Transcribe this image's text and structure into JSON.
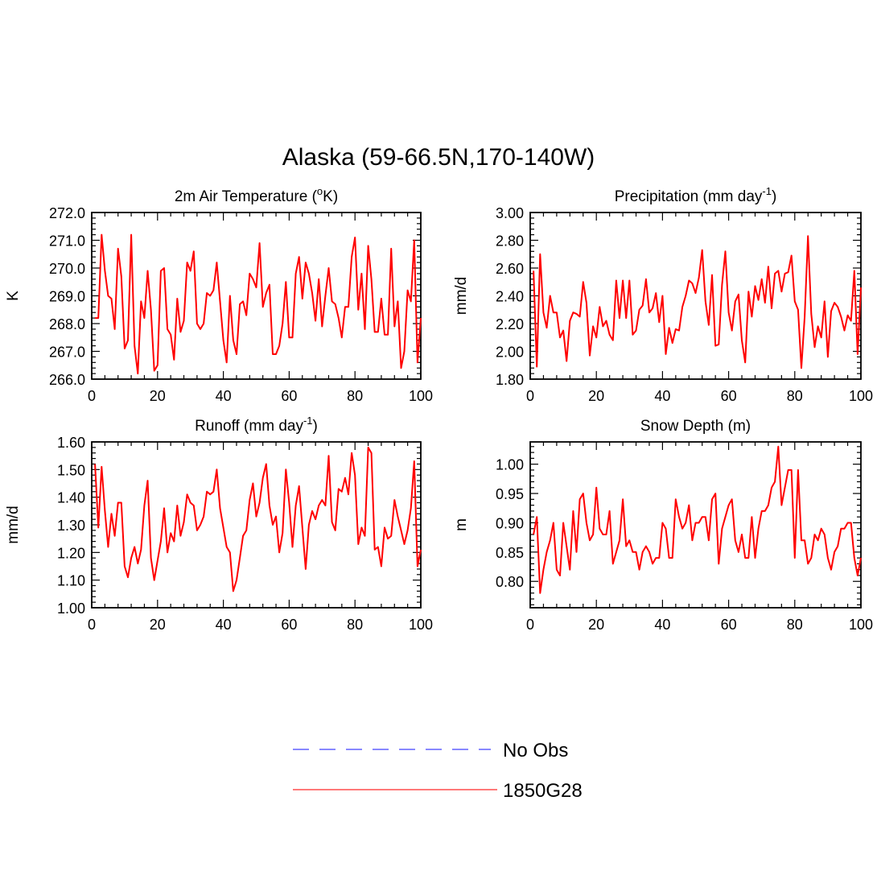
{
  "figure": {
    "title": "Alaska (59-66.5N,170-140W)"
  },
  "legend": {
    "entries": [
      {
        "label": "No Obs",
        "color": "#7777ff",
        "style": "dashed"
      },
      {
        "label": "1850G28",
        "color": "#ff0000",
        "style": "solid"
      }
    ]
  },
  "chart_data": [
    {
      "type": "line",
      "title": "2m Air Temperature (",
      "title_sup": "o",
      "title_end": "K)",
      "ylabel": "K",
      "xlim": [
        0,
        100
      ],
      "ylim": [
        266.0,
        272.0
      ],
      "xticks": [
        0,
        20,
        40,
        60,
        80,
        100
      ],
      "xtick_labels": [
        "0",
        "20",
        "40",
        "60",
        "80",
        "100"
      ],
      "yticks": [
        266.0,
        267.0,
        268.0,
        269.0,
        270.0,
        271.0,
        272.0
      ],
      "ytick_labels": [
        "266.0",
        "267.0",
        "268.0",
        "269.0",
        "270.0",
        "271.0",
        "272.0"
      ],
      "yminor": 0.2,
      "series": [
        {
          "name": "1850G28",
          "color": "#ff0000",
          "x": [
            1,
            2,
            3,
            4,
            5,
            6,
            7,
            8,
            9,
            10,
            11,
            12,
            13,
            14,
            15,
            16,
            17,
            18,
            19,
            20,
            21,
            22,
            23,
            24,
            25,
            26,
            27,
            28,
            29,
            30,
            31,
            32,
            33,
            34,
            35,
            36,
            37,
            38,
            39,
            40,
            41,
            42,
            43,
            44,
            45,
            46,
            47,
            48,
            49,
            50,
            51,
            52,
            53,
            54,
            55,
            56,
            57,
            58,
            59,
            60,
            61,
            62,
            63,
            64,
            65,
            66,
            67,
            68,
            69,
            70,
            71,
            72,
            73,
            74,
            75,
            76,
            77,
            78,
            79,
            80,
            81,
            82,
            83,
            84,
            85,
            86,
            87,
            88,
            89,
            90,
            91,
            92,
            93,
            94,
            95,
            96,
            97,
            98,
            99,
            100
          ],
          "values": [
            268.2,
            268.2,
            271.2,
            269.9,
            269.0,
            268.9,
            267.8,
            270.7,
            269.7,
            267.1,
            267.4,
            271.2,
            267.2,
            266.2,
            268.8,
            268.2,
            269.9,
            268.5,
            266.3,
            266.5,
            269.9,
            270.0,
            267.8,
            267.6,
            266.7,
            268.9,
            267.7,
            268.1,
            270.2,
            269.9,
            270.6,
            268.0,
            267.8,
            268.0,
            269.1,
            269.0,
            269.2,
            270.2,
            268.8,
            267.4,
            266.6,
            269.0,
            267.4,
            266.9,
            268.7,
            268.8,
            268.3,
            269.8,
            269.6,
            269.3,
            270.9,
            268.6,
            269.1,
            269.4,
            266.9,
            266.9,
            267.2,
            268.0,
            269.5,
            267.5,
            267.5,
            269.8,
            270.4,
            268.9,
            270.2,
            269.8,
            269.1,
            268.1,
            269.6,
            267.9,
            269.0,
            270.0,
            268.8,
            268.7,
            268.2,
            267.5,
            268.6,
            268.6,
            270.4,
            271.1,
            268.5,
            269.8,
            267.8,
            270.8,
            269.6,
            267.7,
            267.7,
            268.9,
            267.6,
            267.6,
            270.7,
            267.9,
            268.8,
            266.4,
            267.0,
            269.2,
            268.8,
            271.0,
            266.6,
            268.2
          ]
        }
      ]
    },
    {
      "type": "line",
      "title": "Precipitation (mm day",
      "title_sup": "-1",
      "title_end": ")",
      "ylabel": "mm/d",
      "xlim": [
        0,
        100
      ],
      "ylim": [
        1.8,
        3.0
      ],
      "xticks": [
        0,
        20,
        40,
        60,
        80,
        100
      ],
      "xtick_labels": [
        "0",
        "20",
        "40",
        "60",
        "80",
        "100"
      ],
      "yticks": [
        1.8,
        2.0,
        2.2,
        2.4,
        2.6,
        2.8,
        3.0
      ],
      "ytick_labels": [
        "1.80",
        "2.00",
        "2.20",
        "2.40",
        "2.60",
        "2.80",
        "3.00"
      ],
      "yminor": 0.04,
      "series": [
        {
          "name": "1850G28",
          "color": "#ff0000",
          "x": [
            1,
            2,
            3,
            4,
            5,
            6,
            7,
            8,
            9,
            10,
            11,
            12,
            13,
            14,
            15,
            16,
            17,
            18,
            19,
            20,
            21,
            22,
            23,
            24,
            25,
            26,
            27,
            28,
            29,
            30,
            31,
            32,
            33,
            34,
            35,
            36,
            37,
            38,
            39,
            40,
            41,
            42,
            43,
            44,
            45,
            46,
            47,
            48,
            49,
            50,
            51,
            52,
            53,
            54,
            55,
            56,
            57,
            58,
            59,
            60,
            61,
            62,
            63,
            64,
            65,
            66,
            67,
            68,
            69,
            70,
            71,
            72,
            73,
            74,
            75,
            76,
            77,
            78,
            79,
            80,
            81,
            82,
            83,
            84,
            85,
            86,
            87,
            88,
            89,
            90,
            91,
            92,
            93,
            94,
            95,
            96,
            97,
            98,
            99,
            100
          ],
          "values": [
            2.58,
            1.89,
            2.7,
            2.28,
            2.17,
            2.4,
            2.28,
            2.28,
            2.1,
            2.15,
            1.93,
            2.22,
            2.28,
            2.27,
            2.25,
            2.5,
            2.35,
            1.97,
            2.18,
            2.1,
            2.32,
            2.18,
            2.22,
            2.12,
            2.08,
            2.51,
            2.24,
            2.51,
            2.24,
            2.51,
            2.12,
            2.15,
            2.3,
            2.33,
            2.52,
            2.28,
            2.31,
            2.42,
            2.21,
            2.4,
            1.98,
            2.17,
            2.06,
            2.16,
            2.15,
            2.32,
            2.4,
            2.51,
            2.49,
            2.42,
            2.53,
            2.73,
            2.36,
            2.19,
            2.55,
            2.04,
            2.05,
            2.48,
            2.72,
            2.28,
            2.15,
            2.36,
            2.41,
            2.08,
            1.92,
            2.43,
            2.25,
            2.47,
            2.37,
            2.52,
            2.35,
            2.61,
            2.31,
            2.56,
            2.58,
            2.43,
            2.56,
            2.57,
            2.69,
            2.36,
            2.3,
            1.88,
            2.25,
            2.83,
            2.27,
            2.03,
            2.18,
            2.1,
            2.36,
            1.96,
            2.29,
            2.35,
            2.32,
            2.25,
            2.15,
            2.26,
            2.22,
            2.58,
            1.98,
            2.46
          ]
        }
      ]
    },
    {
      "type": "line",
      "title": "Runoff (mm day",
      "title_sup": "-1",
      "title_end": ")",
      "ylabel": "mm/d",
      "xlim": [
        0,
        100
      ],
      "ylim": [
        1.0,
        1.6
      ],
      "xticks": [
        0,
        20,
        40,
        60,
        80,
        100
      ],
      "xtick_labels": [
        "0",
        "20",
        "40",
        "60",
        "80",
        "100"
      ],
      "yticks": [
        1.0,
        1.1,
        1.2,
        1.3,
        1.4,
        1.5,
        1.6
      ],
      "ytick_labels": [
        "1.00",
        "1.10",
        "1.20",
        "1.30",
        "1.40",
        "1.50",
        "1.60"
      ],
      "yminor": 0.02,
      "series": [
        {
          "name": "1850G28",
          "color": "#ff0000",
          "x": [
            1,
            2,
            3,
            4,
            5,
            6,
            7,
            8,
            9,
            10,
            11,
            12,
            13,
            14,
            15,
            16,
            17,
            18,
            19,
            20,
            21,
            22,
            23,
            24,
            25,
            26,
            27,
            28,
            29,
            30,
            31,
            32,
            33,
            34,
            35,
            36,
            37,
            38,
            39,
            40,
            41,
            42,
            43,
            44,
            45,
            46,
            47,
            48,
            49,
            50,
            51,
            52,
            53,
            54,
            55,
            56,
            57,
            58,
            59,
            60,
            61,
            62,
            63,
            64,
            65,
            66,
            67,
            68,
            69,
            70,
            71,
            72,
            73,
            74,
            75,
            76,
            77,
            78,
            79,
            80,
            81,
            82,
            83,
            84,
            85,
            86,
            87,
            88,
            89,
            90,
            91,
            92,
            93,
            94,
            95,
            96,
            97,
            98,
            99,
            100
          ],
          "values": [
            1.52,
            1.29,
            1.51,
            1.35,
            1.22,
            1.34,
            1.26,
            1.38,
            1.38,
            1.15,
            1.11,
            1.18,
            1.22,
            1.16,
            1.21,
            1.37,
            1.46,
            1.18,
            1.1,
            1.17,
            1.24,
            1.36,
            1.2,
            1.27,
            1.24,
            1.37,
            1.26,
            1.31,
            1.41,
            1.38,
            1.37,
            1.28,
            1.3,
            1.33,
            1.42,
            1.41,
            1.42,
            1.5,
            1.36,
            1.29,
            1.22,
            1.2,
            1.06,
            1.1,
            1.18,
            1.26,
            1.28,
            1.39,
            1.45,
            1.33,
            1.38,
            1.47,
            1.52,
            1.37,
            1.3,
            1.33,
            1.2,
            1.27,
            1.5,
            1.38,
            1.22,
            1.37,
            1.44,
            1.29,
            1.14,
            1.3,
            1.35,
            1.32,
            1.37,
            1.39,
            1.37,
            1.55,
            1.31,
            1.28,
            1.43,
            1.42,
            1.47,
            1.41,
            1.56,
            1.48,
            1.23,
            1.29,
            1.26,
            1.58,
            1.56,
            1.21,
            1.22,
            1.15,
            1.29,
            1.25,
            1.26,
            1.39,
            1.33,
            1.28,
            1.23,
            1.28,
            1.36,
            1.53,
            1.15,
            1.21
          ]
        }
      ]
    },
    {
      "type": "line",
      "title": "Snow Depth (m)",
      "title_sup": "",
      "title_end": "",
      "ylabel": "m",
      "xlim": [
        0,
        100
      ],
      "ylim": [
        0.755,
        1.038
      ],
      "xticks": [
        0,
        20,
        40,
        60,
        80,
        100
      ],
      "xtick_labels": [
        "0",
        "20",
        "40",
        "60",
        "80",
        "100"
      ],
      "yticks": [
        0.8,
        0.85,
        0.9,
        0.95,
        1.0
      ],
      "ytick_labels": [
        "0.80",
        "0.85",
        "0.90",
        "0.95",
        "1.00"
      ],
      "yminor": 0.01,
      "series": [
        {
          "name": "1850G28",
          "color": "#ff0000",
          "x": [
            1,
            2,
            3,
            4,
            5,
            6,
            7,
            8,
            9,
            10,
            11,
            12,
            13,
            14,
            15,
            16,
            17,
            18,
            19,
            20,
            21,
            22,
            23,
            24,
            25,
            26,
            27,
            28,
            29,
            30,
            31,
            32,
            33,
            34,
            35,
            36,
            37,
            38,
            39,
            40,
            41,
            42,
            43,
            44,
            45,
            46,
            47,
            48,
            49,
            50,
            51,
            52,
            53,
            54,
            55,
            56,
            57,
            58,
            59,
            60,
            61,
            62,
            63,
            64,
            65,
            66,
            67,
            68,
            69,
            70,
            71,
            72,
            73,
            74,
            75,
            76,
            77,
            78,
            79,
            80,
            81,
            82,
            83,
            84,
            85,
            86,
            87,
            88,
            89,
            90,
            91,
            92,
            93,
            94,
            95,
            96,
            97,
            98,
            99,
            100
          ],
          "values": [
            0.88,
            0.91,
            0.78,
            0.82,
            0.85,
            0.87,
            0.9,
            0.82,
            0.81,
            0.9,
            0.86,
            0.82,
            0.92,
            0.85,
            0.94,
            0.95,
            0.9,
            0.87,
            0.88,
            0.96,
            0.89,
            0.88,
            0.88,
            0.92,
            0.83,
            0.85,
            0.87,
            0.94,
            0.86,
            0.87,
            0.85,
            0.85,
            0.82,
            0.85,
            0.86,
            0.85,
            0.83,
            0.84,
            0.84,
            0.9,
            0.89,
            0.84,
            0.84,
            0.94,
            0.91,
            0.89,
            0.9,
            0.93,
            0.87,
            0.9,
            0.9,
            0.91,
            0.91,
            0.87,
            0.94,
            0.95,
            0.83,
            0.89,
            0.91,
            0.93,
            0.94,
            0.87,
            0.85,
            0.88,
            0.84,
            0.84,
            0.91,
            0.84,
            0.89,
            0.92,
            0.92,
            0.93,
            0.96,
            0.97,
            1.03,
            0.93,
            0.96,
            0.99,
            0.99,
            0.84,
            0.99,
            0.87,
            0.87,
            0.83,
            0.84,
            0.88,
            0.87,
            0.89,
            0.88,
            0.84,
            0.82,
            0.85,
            0.86,
            0.89,
            0.89,
            0.9,
            0.9,
            0.84,
            0.81,
            0.84
          ]
        }
      ]
    }
  ]
}
